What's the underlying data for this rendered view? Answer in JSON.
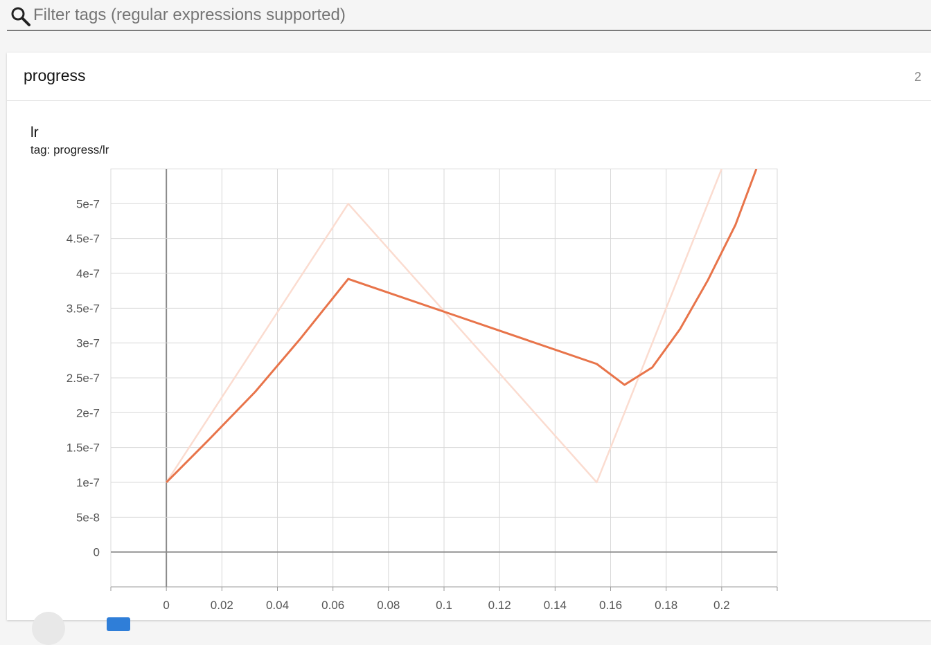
{
  "search": {
    "placeholder": "Filter tags (regular expressions supported)",
    "value": ""
  },
  "card": {
    "title": "progress",
    "count": "2"
  },
  "chart": {
    "title": "lr",
    "tag": "tag: progress/lr"
  },
  "colors": {
    "series_main": "#e8744a",
    "series_light": "#fbdcd0",
    "grid": "#d8d8d8",
    "axis": "#9a9a9a",
    "tick_text": "#555555"
  },
  "icons": {
    "search": "search-icon"
  },
  "chart_data": {
    "type": "line",
    "title": "lr",
    "xlabel": "",
    "ylabel": "",
    "xlim": [
      -0.02,
      0.22
    ],
    "ylim": [
      -5e-08,
      5.5e-07
    ],
    "grid": true,
    "x_ticks": [
      0,
      0.02,
      0.04,
      0.06,
      0.08,
      0.1,
      0.12,
      0.14,
      0.16,
      0.18,
      0.2
    ],
    "x_tick_labels": [
      "0",
      "0.02",
      "0.04",
      "0.06",
      "0.08",
      "0.1",
      "0.12",
      "0.14",
      "0.16",
      "0.18",
      "0.2"
    ],
    "y_ticks": [
      0,
      5e-08,
      1e-07,
      1.5e-07,
      2e-07,
      2.5e-07,
      3e-07,
      3.5e-07,
      4e-07,
      4.5e-07,
      5e-07
    ],
    "y_tick_labels": [
      "0",
      "5e-8",
      "1e-7",
      "1.5e-7",
      "2e-7",
      "2.5e-7",
      "3e-7",
      "3.5e-7",
      "4e-7",
      "4.5e-7",
      "5e-7"
    ],
    "series": [
      {
        "role": "raw",
        "color": "#fbdcd0",
        "x": [
          0,
          0.0655,
          0.155,
          0.2
        ],
        "y": [
          1e-07,
          5e-07,
          1e-07,
          5.5e-07
        ]
      },
      {
        "role": "smoothed",
        "color": "#e8744a",
        "x": [
          0,
          0.015,
          0.032,
          0.048,
          0.0655,
          0.1,
          0.155,
          0.165,
          0.175,
          0.185,
          0.195,
          0.205,
          0.2125
        ],
        "y": [
          1e-07,
          1.6e-07,
          2.3e-07,
          3.05e-07,
          3.92e-07,
          3.45e-07,
          2.7e-07,
          2.4e-07,
          2.65e-07,
          3.2e-07,
          3.9e-07,
          4.7e-07,
          5.5e-07
        ]
      }
    ]
  }
}
